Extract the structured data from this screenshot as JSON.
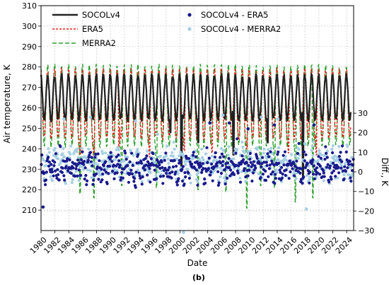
{
  "chart_data": {
    "type": "line",
    "xlabel": "Date",
    "ylabel": "Air temperature, K",
    "y2label": "Diff., K",
    "caption": "(b)",
    "xlim": [
      1980,
      2025
    ],
    "ylim": [
      200,
      310
    ],
    "y2lim": [
      -30,
      85
    ],
    "xticks": [
      "1980",
      "1982",
      "1984",
      "1986",
      "1988",
      "1990",
      "1992",
      "1994",
      "1996",
      "1998",
      "2000",
      "2002",
      "2004",
      "2006",
      "2008",
      "2010",
      "2012",
      "2014",
      "2016",
      "2018",
      "2020",
      "2022",
      "2024"
    ],
    "yticks": [
      210,
      220,
      230,
      240,
      250,
      260,
      270,
      280,
      290,
      300,
      310
    ],
    "y2ticks": [
      -30,
      -20,
      -10,
      0,
      10,
      20,
      30
    ],
    "grid": true,
    "legend_placement": "top",
    "series": [
      {
        "name": "SOCOLv4",
        "color": "#222222",
        "style": "solid",
        "baseline": 265,
        "amplitude": 11,
        "spike_years": [
          1998.6,
          2000.2,
          2002.6,
          2007.7,
          2012.6,
          2017.7
        ],
        "spike_values": [
          248,
          229,
          243,
          237,
          243,
          225
        ]
      },
      {
        "name": "ERA5",
        "color": "#e8201a",
        "style": "dotted",
        "baseline": 262,
        "amplitude": 17,
        "spike_years": [
          1985.6,
          1987.6,
          1991.2,
          1995.6,
          2000.6,
          2004.6,
          2009.6,
          2015.6,
          2019.6
        ],
        "spike_values": [
          237,
          236,
          240,
          236,
          239,
          238,
          240,
          238,
          237
        ]
      },
      {
        "name": "MERRA2",
        "color": "#2ca02c",
        "style": "dashed",
        "baseline": 261,
        "amplitude": 20,
        "spike_years": [
          1985.6,
          1987.6,
          1991.6,
          1996.6,
          2002.6,
          2006.6,
          2009.6,
          2011.6,
          2013.6,
          2016.6,
          2019.1
        ],
        "spike_values": [
          218,
          216,
          222,
          221,
          220,
          219,
          211,
          222,
          221,
          214,
          216
        ]
      }
    ],
    "difference_series": [
      {
        "name": "SOCOLv4 - ERA5",
        "color": "#1a1a8c",
        "marker": "circle",
        "mean": 2,
        "spread": 12,
        "outlier_years": [
          2004.3,
          2007.1,
          2009.8,
          2013.6,
          2019.3,
          1980.3
        ],
        "outlier_values": [
          25,
          25,
          22,
          24,
          24,
          -18
        ]
      },
      {
        "name": "SOCOLv4 - MERRA2",
        "color": "#a6cfe3",
        "marker": "circle",
        "mean": 4,
        "spread": 14,
        "outlier_years": [
          1983.3,
          1987.1,
          1993.6,
          2006.2,
          2011.7,
          2014.1,
          2000.5,
          2018.2
        ],
        "outlier_values": [
          27,
          28,
          26,
          29,
          28,
          27,
          -31,
          -19
        ]
      }
    ]
  }
}
